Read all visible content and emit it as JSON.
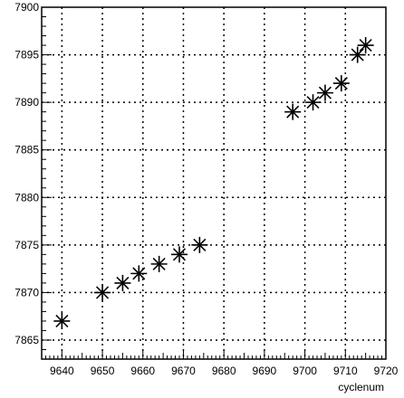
{
  "chart_data": {
    "type": "scatter",
    "title": "",
    "xlabel": "cyclenum",
    "ylabel": "",
    "xlim": [
      9635,
      9720
    ],
    "ylim": [
      7863,
      7900
    ],
    "grid": true,
    "grid_style": "dotted",
    "marker": "asterisk",
    "marker_color": "#000000",
    "xticks": [
      9640,
      9650,
      9660,
      9670,
      9680,
      9690,
      9700,
      9710,
      9720
    ],
    "yticks": [
      7865,
      7870,
      7875,
      7880,
      7885,
      7890,
      7895,
      7900
    ],
    "points": [
      {
        "x": 9640,
        "y": 7867
      },
      {
        "x": 9650,
        "y": 7870
      },
      {
        "x": 9655,
        "y": 7871
      },
      {
        "x": 9659,
        "y": 7872
      },
      {
        "x": 9664,
        "y": 7873
      },
      {
        "x": 9669,
        "y": 7874
      },
      {
        "x": 9674,
        "y": 7875
      },
      {
        "x": 9697,
        "y": 7889
      },
      {
        "x": 9702,
        "y": 7890
      },
      {
        "x": 9705,
        "y": 7891
      },
      {
        "x": 9709,
        "y": 7892
      },
      {
        "x": 9713,
        "y": 7895
      },
      {
        "x": 9715,
        "y": 7896
      }
    ]
  }
}
